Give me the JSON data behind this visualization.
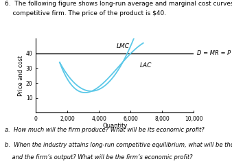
{
  "title_line1": "6.  The following figure shows long-run average and marginal cost curves for a",
  "title_line2": "    competitive firm. The price of the product is $40.",
  "xlabel": "Quantity",
  "ylabel": "Price and cost",
  "xlim": [
    0,
    10000
  ],
  "ylim": [
    0,
    50
  ],
  "xticks": [
    0,
    2000,
    4000,
    6000,
    8000,
    10000
  ],
  "yticks": [
    10,
    20,
    30,
    40
  ],
  "price_line_y": 40,
  "price_label": "D = MR = P",
  "lmc_label": "LMC",
  "lac_label": "LAC",
  "curve_color": "#5bc8e8",
  "price_line_color": "#000000",
  "footnote_a": "a.  How much will the firm produce? What will be its economic profit?",
  "footnote_b1": "b.  When the industry attains long-run competitive equilibrium, what will be the price",
  "footnote_b2": "    and the firm’s output? What will be the firm’s economic profit?",
  "background_color": "#ffffff",
  "text_color": "#000000",
  "title_fontsize": 6.5,
  "axis_tick_fontsize": 5.5,
  "axis_label_fontsize": 6.0,
  "curve_label_fontsize": 6.5,
  "footnote_fontsize": 6.0,
  "price_label_fontsize": 6.0
}
